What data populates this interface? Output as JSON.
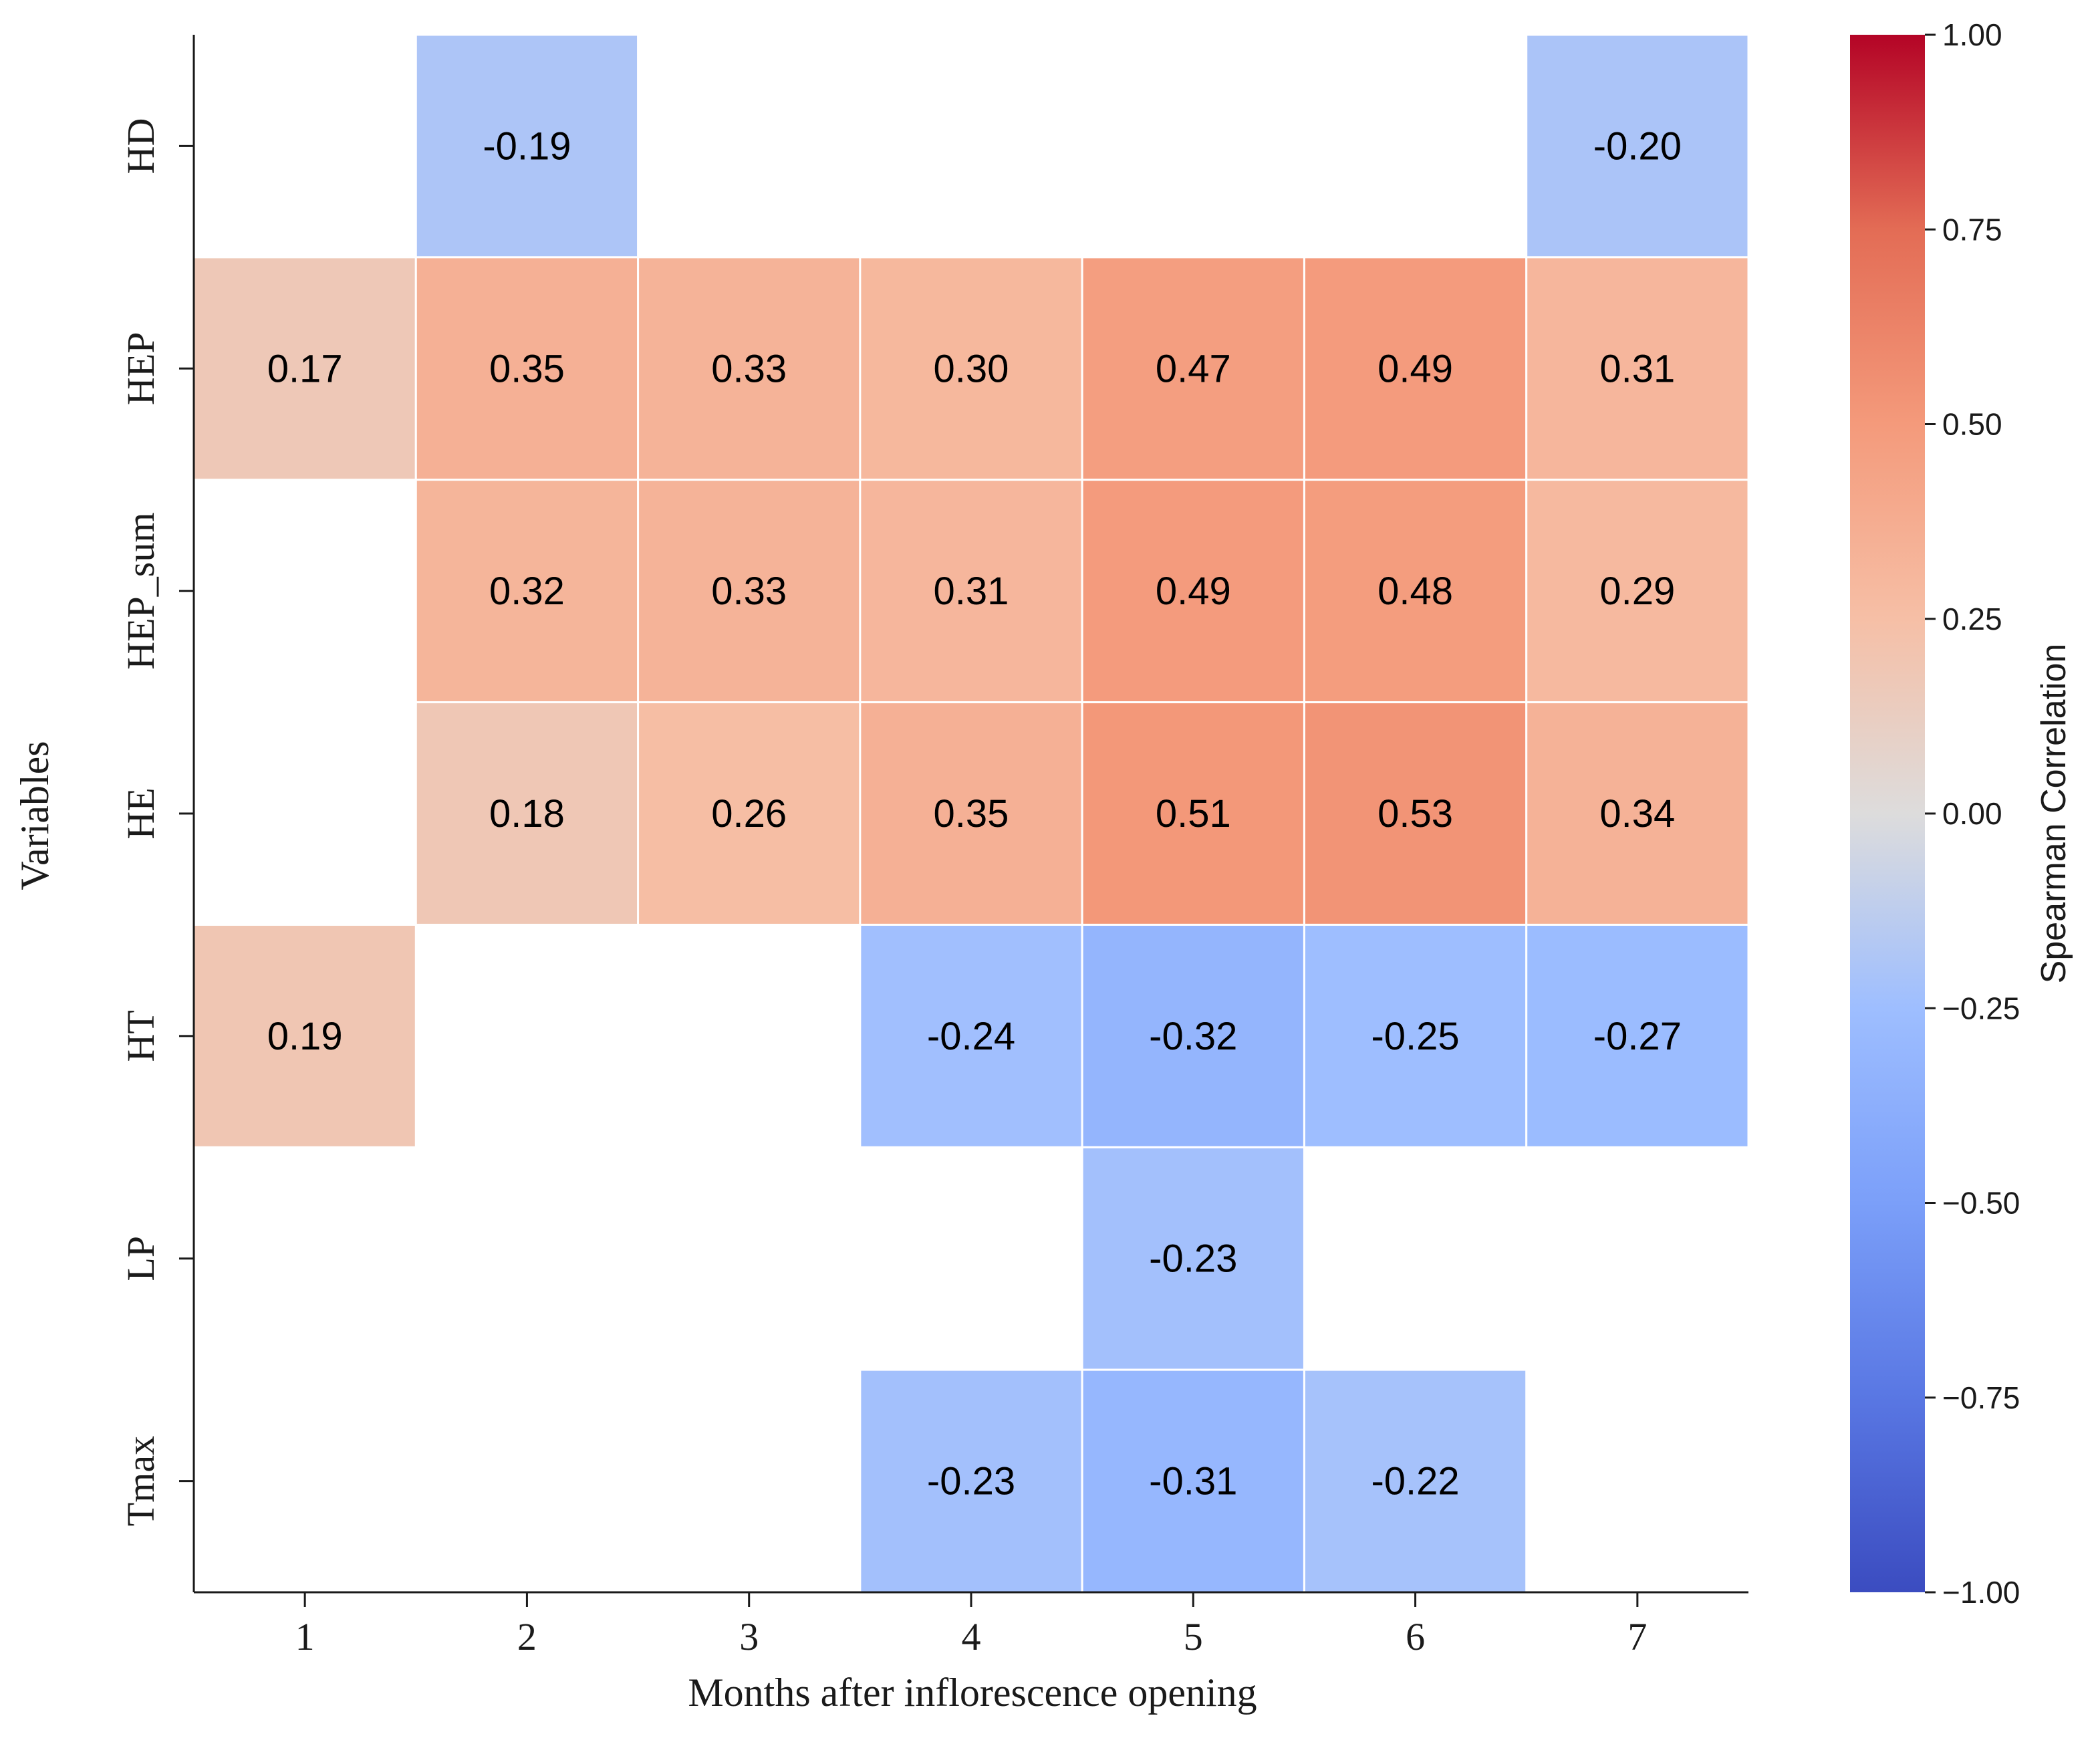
{
  "chart_data": {
    "type": "heatmap",
    "xlabel": "Months after inflorescence opening",
    "ylabel": "Variables",
    "x_categories": [
      "1",
      "2",
      "3",
      "4",
      "5",
      "6",
      "7"
    ],
    "y_categories": [
      "HD",
      "HEP",
      "HEP_sum",
      "HE",
      "HT",
      "LP",
      "Tmax"
    ],
    "values": [
      [
        null,
        -0.19,
        null,
        null,
        null,
        null,
        -0.2
      ],
      [
        0.17,
        0.35,
        0.33,
        0.3,
        0.47,
        0.49,
        0.31
      ],
      [
        null,
        0.32,
        0.33,
        0.31,
        0.49,
        0.48,
        0.29
      ],
      [
        null,
        0.18,
        0.26,
        0.35,
        0.51,
        0.53,
        0.34
      ],
      [
        0.19,
        null,
        null,
        -0.24,
        -0.32,
        -0.25,
        -0.27
      ],
      [
        null,
        null,
        null,
        null,
        -0.23,
        null,
        null
      ],
      [
        null,
        null,
        null,
        -0.23,
        -0.31,
        -0.22,
        null
      ]
    ],
    "value_labels": [
      [
        null,
        "-0.19",
        null,
        null,
        null,
        null,
        "-0.20"
      ],
      [
        "0.17",
        "0.35",
        "0.33",
        "0.30",
        "0.47",
        "0.49",
        "0.31"
      ],
      [
        null,
        "0.32",
        "0.33",
        "0.31",
        "0.49",
        "0.48",
        "0.29"
      ],
      [
        null,
        "0.18",
        "0.26",
        "0.35",
        "0.51",
        "0.53",
        "0.34"
      ],
      [
        "0.19",
        null,
        null,
        "-0.24",
        "-0.32",
        "-0.25",
        "-0.27"
      ],
      [
        null,
        null,
        null,
        null,
        "-0.23",
        null,
        null
      ],
      [
        null,
        null,
        null,
        "-0.23",
        "-0.31",
        "-0.22",
        null
      ]
    ],
    "colormap": "coolwarm",
    "vmin": -1.0,
    "vmax": 1.0,
    "colorbar": {
      "label": "Spearman Correlation",
      "ticks": [
        1.0,
        0.75,
        0.5,
        0.25,
        0.0,
        -0.25,
        -0.5,
        -0.75,
        -1.0
      ],
      "tick_labels": [
        "1.00",
        "0.75",
        "0.50",
        "0.25",
        "0.00",
        "−0.25",
        "−0.50",
        "−0.75",
        "−1.00"
      ],
      "placement": "right"
    }
  },
  "colors": {
    "cmap_stops": [
      [
        "0.0",
        "#3b4cc0"
      ],
      [
        "0.125",
        "#5977e3"
      ],
      [
        "0.25",
        "#7b9ff9"
      ],
      [
        "0.375",
        "#9ebeff"
      ],
      [
        "0.5",
        "#dddcdc"
      ],
      [
        "0.625",
        "#f6bfa6"
      ],
      [
        "0.75",
        "#f49a7b"
      ],
      [
        "0.875",
        "#e36c55"
      ],
      [
        "1.0",
        "#b40426"
      ]
    ],
    "axis_line": "#1a1a1a",
    "cell_border": "#ffffff"
  }
}
